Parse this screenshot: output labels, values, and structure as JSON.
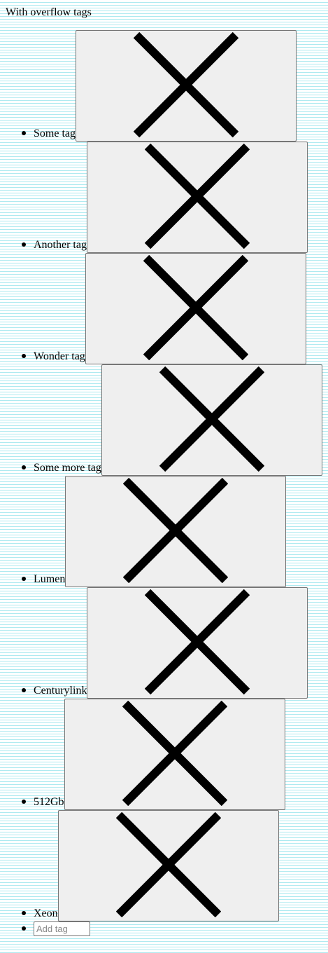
{
  "section": {
    "title": "With overflow tags"
  },
  "tags": [
    {
      "label": "Some tag",
      "remove_icon": "close-icon"
    },
    {
      "label": "Another tag",
      "remove_icon": "close-icon"
    },
    {
      "label": "Wonder tag",
      "remove_icon": "close-icon"
    },
    {
      "label": "Some more tag",
      "remove_icon": "close-icon"
    },
    {
      "label": "Lumen",
      "remove_icon": "close-icon"
    },
    {
      "label": "Centurylink",
      "remove_icon": "close-icon"
    },
    {
      "label": "512Gb",
      "remove_icon": "close-icon"
    },
    {
      "label": "Xeon",
      "remove_icon": "close-icon"
    }
  ],
  "add_tag": {
    "value": "",
    "placeholder": "Add tag"
  },
  "colors": {
    "background": "#ffffff",
    "rule_lines": "#aeeaf0",
    "button_face": "#efefef",
    "button_border": "#767676",
    "icon": "#000000"
  }
}
